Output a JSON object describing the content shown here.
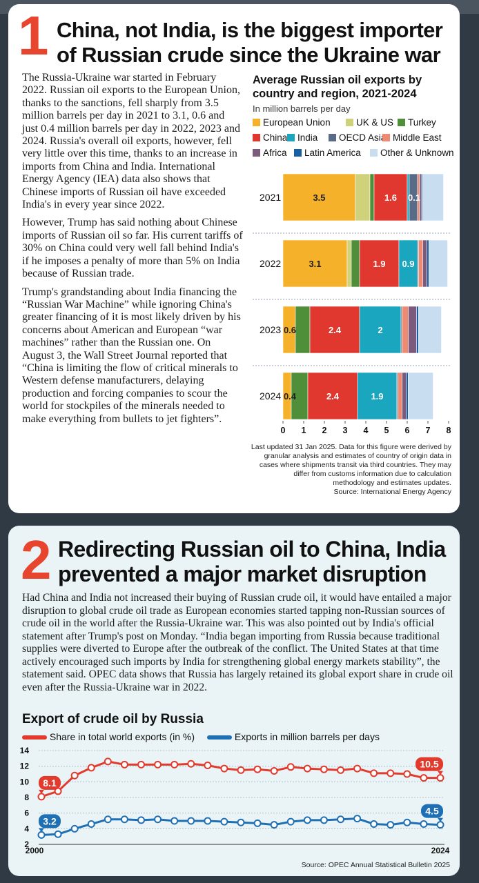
{
  "section1": {
    "number": "1",
    "headline_line1": "China, not India, is the biggest importer",
    "headline_line2": "of Russian crude since the Ukraine war",
    "paragraphs": [
      "The Russia-Ukraine war started in February 2022. Russian oil exports to the European Union, thanks to the sanctions, fell sharply from 3.5 million barrels per day in 2021 to 3.1, 0.6 and just 0.4 million barrels per day in 2022, 2023 and 2024. Russia's overall oil exports, however, fell very little over this time, thanks to an increase in imports from China and India. International Energy Agency (IEA) data also shows that Chinese imports of Russian oil have exceeded India's in every year since 2022.",
      "However, Trump has said nothing about Chinese imports of Russian oil so far. His current tariffs of 30% on China could very well fall behind India's if he imposes a penalty of more than 5% on India because of Russian trade.",
      "Trump's grandstanding about India financing the “Russian War Machine” while ignoring China's greater financing of it is most likely driven by his concerns about American and European “war machines” rather than the Russian one. On August 3, the Wall Street Journal reported that “China is limiting the flow of critical minerals to Western defense manufacturers, delaying production and forcing companies to scour the world for stockpiles of the minerals needed to make everything from bullets to jet fighters”."
    ]
  },
  "section2": {
    "number": "2",
    "headline_line1": "Redirecting Russian oil to China, India",
    "headline_line2": "prevented a major market disruption",
    "paragraph": "Had China and India not increased their buying of Russian crude oil, it would have entailed a major disruption to global crude oil trade as European economies started tapping non-Russian sources of crude oil in the world after the Russia-Ukraine war. This was also pointed out by India's official statement after Trump's post on Monday. “India began importing from Russia because traditional supplies were diverted to Europe after the outbreak of the conflict. The United States at that time actively encouraged such imports by India for strengthening global energy markets stability”, the statement said. OPEC data shows that Russia has largely retained its global export share in crude oil even after the Russia-Ukraine war in 2022."
  },
  "chart_data": [
    {
      "type": "bar",
      "orientation": "horizontal",
      "stacked": true,
      "title": "Average Russian oil exports by country and region, 2021-2024",
      "subtitle": "In million barrels per day",
      "categories": [
        "2021",
        "2022",
        "2023",
        "2024"
      ],
      "xlim": [
        0,
        8
      ],
      "x_ticks": [
        "0",
        "1",
        "2",
        "3",
        "4",
        "5",
        "6",
        "7",
        "8"
      ],
      "legend_position": "top",
      "series": [
        {
          "name": "European Union",
          "color": "#f6b12a",
          "values": [
            3.5,
            3.1,
            0.6,
            0.4
          ]
        },
        {
          "name": "UK & US",
          "color": "#cfd27a",
          "values": [
            0.7,
            0.2,
            0.0,
            0.0
          ]
        },
        {
          "name": "Turkey",
          "color": "#4f8f3a",
          "values": [
            0.2,
            0.4,
            0.7,
            0.8
          ]
        },
        {
          "name": "China",
          "color": "#e0382e",
          "values": [
            1.6,
            1.9,
            2.4,
            2.4
          ]
        },
        {
          "name": "India",
          "color": "#1aa6bf",
          "values": [
            0.1,
            0.9,
            2.0,
            1.9
          ]
        },
        {
          "name": "OECD Asia",
          "color": "#596b86",
          "values": [
            0.4,
            0.05,
            0.05,
            0.05
          ]
        },
        {
          "name": "Middle East",
          "color": "#ee8a72",
          "values": [
            0.1,
            0.2,
            0.3,
            0.2
          ]
        },
        {
          "name": "Africa",
          "color": "#7b5a7d",
          "values": [
            0.1,
            0.2,
            0.4,
            0.2
          ]
        },
        {
          "name": "Latin America",
          "color": "#1b5fa3",
          "values": [
            0.05,
            0.1,
            0.1,
            0.1
          ]
        },
        {
          "name": "Other & Unknown",
          "color": "#c9ddf0",
          "values": [
            1.0,
            0.9,
            1.1,
            1.2
          ]
        }
      ],
      "data_labels": [
        {
          "category": "2021",
          "series": "European Union",
          "text": "3.5"
        },
        {
          "category": "2021",
          "series": "China",
          "text": "1.6"
        },
        {
          "category": "2021",
          "series": "India",
          "text": "0.1"
        },
        {
          "category": "2022",
          "series": "European Union",
          "text": "3.1"
        },
        {
          "category": "2022",
          "series": "China",
          "text": "1.9"
        },
        {
          "category": "2022",
          "series": "India",
          "text": "0.9"
        },
        {
          "category": "2023",
          "series": "European Union",
          "text": "0.6"
        },
        {
          "category": "2023",
          "series": "China",
          "text": "2.4"
        },
        {
          "category": "2023",
          "series": "India",
          "text": "2"
        },
        {
          "category": "2024",
          "series": "European Union",
          "text": "0.4"
        },
        {
          "category": "2024",
          "series": "China",
          "text": "2.4"
        },
        {
          "category": "2024",
          "series": "India",
          "text": "1.9"
        }
      ],
      "footnote_lines": [
        "Last updated 31 Jan 2025. Data for this figure were derived by",
        "granular analysis and estimates of country of origin data in",
        "cases where shipments transit via third countries. They may",
        "differ from customs information due to calculation",
        "methodology and estimates updates.",
        "Source: International Energy Agency"
      ]
    },
    {
      "type": "line",
      "title": "Export of crude oil by Russia",
      "x": [
        2000,
        2001,
        2002,
        2003,
        2004,
        2005,
        2006,
        2007,
        2008,
        2009,
        2010,
        2011,
        2012,
        2013,
        2014,
        2015,
        2016,
        2017,
        2018,
        2019,
        2020,
        2021,
        2022,
        2023,
        2024
      ],
      "x_tick_labels": [
        "2000",
        "2024"
      ],
      "ylim": [
        2,
        14
      ],
      "y_ticks": [
        "2",
        "4",
        "6",
        "8",
        "10",
        "12",
        "14"
      ],
      "grid": true,
      "legend_position": "top",
      "series": [
        {
          "name": "Share in total world exports (in %)",
          "color": "#e23b2e",
          "values": [
            8.1,
            8.8,
            10.8,
            11.8,
            12.6,
            12.2,
            12.2,
            12.2,
            12.2,
            12.3,
            12.1,
            11.7,
            11.5,
            11.6,
            11.4,
            11.9,
            11.7,
            11.6,
            11.5,
            11.7,
            11.1,
            11.1,
            11.0,
            10.5,
            10.5
          ],
          "labels": [
            {
              "x": 2000,
              "text": "8.1"
            },
            {
              "x": 2024,
              "text": "10.5"
            }
          ]
        },
        {
          "name": "Exports in million barrels per days",
          "color": "#1f6fb4",
          "values": [
            3.2,
            3.3,
            4.0,
            4.6,
            5.2,
            5.2,
            5.1,
            5.2,
            5.0,
            5.0,
            5.0,
            4.9,
            4.8,
            4.7,
            4.5,
            4.9,
            5.1,
            5.1,
            5.2,
            5.3,
            4.6,
            4.5,
            4.8,
            4.6,
            4.5
          ],
          "labels": [
            {
              "x": 2000,
              "text": "3.2"
            },
            {
              "x": 2024,
              "text": "4.5"
            }
          ]
        }
      ],
      "source": "Source: OPEC Annual Statistical Bulletin 2025"
    }
  ]
}
